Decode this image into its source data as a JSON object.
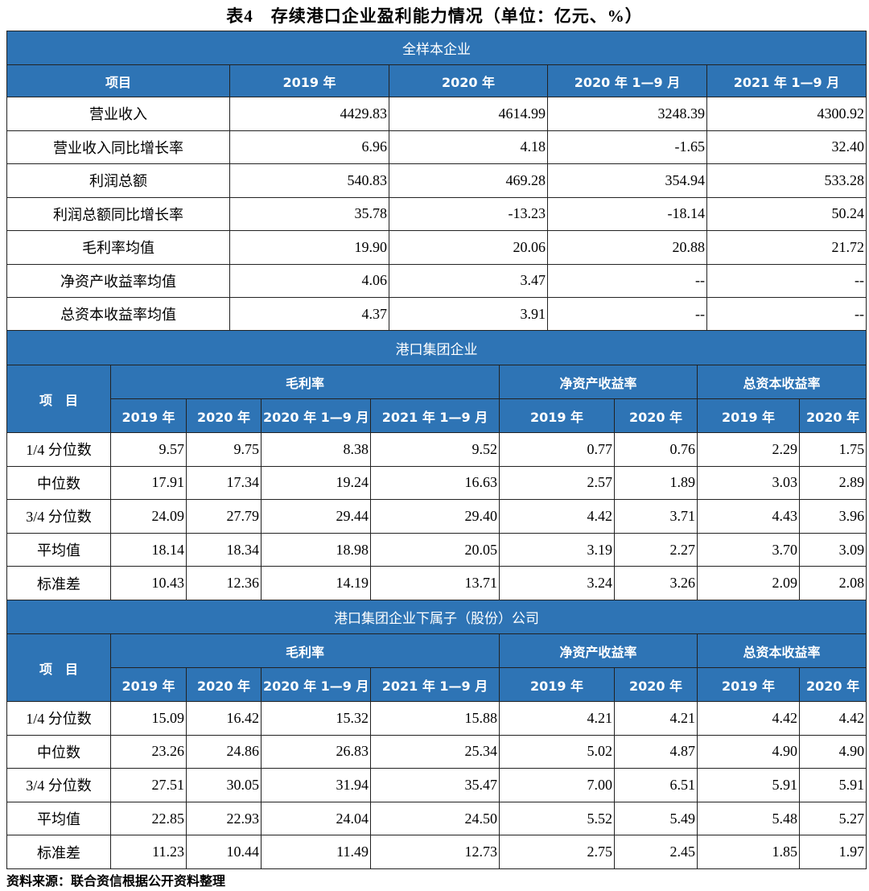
{
  "title": "表4　存续港口企业盈利能力情况（单位：亿元、%）",
  "colors": {
    "header_bg": "#2e74b5",
    "header_text": "#ffffff"
  },
  "section1": {
    "title": "全样本企业",
    "headers": [
      "项目",
      "2019 年",
      "2020 年",
      "2020 年 1—9 月",
      "2021 年 1—9 月"
    ],
    "rows": [
      [
        "营业收入",
        "4429.83",
        "4614.99",
        "3248.39",
        "4300.92"
      ],
      [
        "营业收入同比增长率",
        "6.96",
        "4.18",
        "-1.65",
        "32.40"
      ],
      [
        "利润总额",
        "540.83",
        "469.28",
        "354.94",
        "533.28"
      ],
      [
        "利润总额同比增长率",
        "35.78",
        "-13.23",
        "-18.14",
        "50.24"
      ],
      [
        "毛利率均值",
        "19.90",
        "20.06",
        "20.88",
        "21.72"
      ],
      [
        "净资产收益率均值",
        "4.06",
        "3.47",
        "--",
        "--"
      ],
      [
        "总资本收益率均值",
        "4.37",
        "3.91",
        "--",
        "--"
      ]
    ]
  },
  "section2": {
    "title": "港口集团企业",
    "item_header": "项　目",
    "groups": [
      "毛利率",
      "净资产收益率",
      "总资本收益率"
    ],
    "subheaders": [
      "2019 年",
      "2020 年",
      "2020 年 1—9 月",
      "2021 年 1—9 月",
      "2019 年",
      "2020 年",
      "2019 年",
      "2020 年"
    ],
    "rows": [
      [
        "1/4 分位数",
        "9.57",
        "9.75",
        "8.38",
        "9.52",
        "0.77",
        "0.76",
        "2.29",
        "1.75"
      ],
      [
        "中位数",
        "17.91",
        "17.34",
        "19.24",
        "16.63",
        "2.57",
        "1.89",
        "3.03",
        "2.89"
      ],
      [
        "3/4 分位数",
        "24.09",
        "27.79",
        "29.44",
        "29.40",
        "4.42",
        "3.71",
        "4.43",
        "3.96"
      ],
      [
        "平均值",
        "18.14",
        "18.34",
        "18.98",
        "20.05",
        "3.19",
        "2.27",
        "3.70",
        "3.09"
      ],
      [
        "标准差",
        "10.43",
        "12.36",
        "14.19",
        "13.71",
        "3.24",
        "3.26",
        "2.09",
        "2.08"
      ]
    ]
  },
  "section3": {
    "title": "港口集团企业下属子（股份）公司",
    "item_header": "项　目",
    "groups": [
      "毛利率",
      "净资产收益率",
      "总资本收益率"
    ],
    "subheaders": [
      "2019 年",
      "2020 年",
      "2020 年 1—9 月",
      "2021 年 1—9 月",
      "2019 年",
      "2020 年",
      "2019 年",
      "2020 年"
    ],
    "rows": [
      [
        "1/4 分位数",
        "15.09",
        "16.42",
        "15.32",
        "15.88",
        "4.21",
        "4.21",
        "4.42",
        "4.42"
      ],
      [
        "中位数",
        "23.26",
        "24.86",
        "26.83",
        "25.34",
        "5.02",
        "4.87",
        "4.90",
        "4.90"
      ],
      [
        "3/4 分位数",
        "27.51",
        "30.05",
        "31.94",
        "35.47",
        "7.00",
        "6.51",
        "5.91",
        "5.91"
      ],
      [
        "平均值",
        "22.85",
        "22.93",
        "24.04",
        "24.50",
        "5.52",
        "5.49",
        "5.48",
        "5.27"
      ],
      [
        "标准差",
        "11.23",
        "10.44",
        "11.49",
        "12.73",
        "2.75",
        "2.45",
        "1.85",
        "1.97"
      ]
    ]
  },
  "source": "资料来源：联合资信根据公开资料整理"
}
